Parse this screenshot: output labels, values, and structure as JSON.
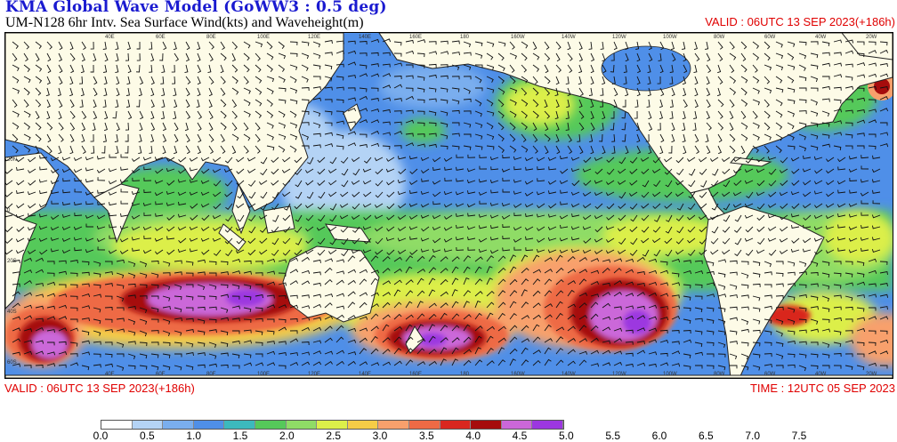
{
  "header": {
    "title": "KMA  Global Wave Model (GoWW3 : 0.5 deg)",
    "subtitle": "UM-N128  6hr Intv. Sea Surface Wind(kts) and Waveheight(m)",
    "valid_top": "VALID : 06UTC 13 SEP 2023(+186h)"
  },
  "footer": {
    "valid": "VALID : 06UTC 13 SEP 2023(+186h)",
    "time": "TIME : 12UTC 05 SEP 2023"
  },
  "map": {
    "lon_labels": [
      "40E",
      "60E",
      "80E",
      "100E",
      "120E",
      "140E",
      "160E",
      "180",
      "160W",
      "140W",
      "120W",
      "100W",
      "80W",
      "60W",
      "40W",
      "20W"
    ],
    "lat_labels": [
      "20N",
      "0",
      "20S",
      "40S",
      "60S"
    ],
    "colors": {
      "land": "#fdfbe7",
      "coast": "#222222",
      "wind_barbs": "#111111"
    }
  },
  "legend": {
    "labels": [
      "0.0",
      "0.5",
      "1.0",
      "1.5",
      "2.0",
      "2.5",
      "3.0",
      "3.5",
      "4.0",
      "4.5",
      "5.0",
      "5.5",
      "6.0",
      "6.5",
      "7.0",
      "7.5"
    ],
    "colors": [
      "#ffffff",
      "#b4d3f5",
      "#7aaeee",
      "#4f8fe8",
      "#3cb9bd",
      "#55c95a",
      "#8fdc66",
      "#dcef4a",
      "#f5cc47",
      "#f8a06c",
      "#ee6a45",
      "#d9271f",
      "#a60c0c",
      "#cb67d9",
      "#9c37e0"
    ]
  }
}
